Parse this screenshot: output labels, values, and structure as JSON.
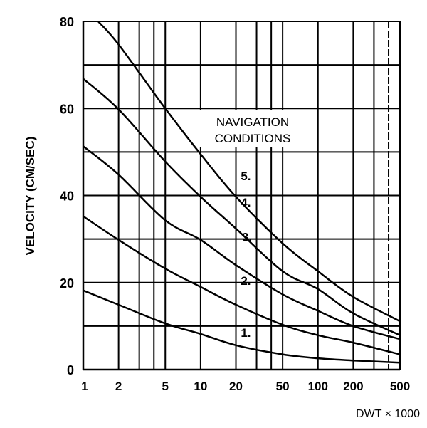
{
  "chart_data": {
    "type": "line",
    "title": "",
    "xlabel": "DWT × 1000",
    "ylabel": "VELOCITY (CM/SEC)",
    "x_scale": "log",
    "xlim": [
      1,
      500
    ],
    "ylim": [
      0,
      80
    ],
    "grid": true,
    "x_ticks": [
      1,
      2,
      5,
      10,
      20,
      50,
      100,
      200,
      500
    ],
    "x_tick_labels": [
      "1",
      "2",
      "5",
      "10",
      "20",
      "50",
      "100",
      "200",
      "500"
    ],
    "x_gridlines": [
      1,
      2,
      3,
      4,
      5,
      10,
      20,
      30,
      40,
      50,
      100,
      200,
      300,
      400,
      500
    ],
    "y_ticks": [
      0,
      20,
      40,
      60,
      80
    ],
    "y_tick_labels": [
      "0",
      "20",
      "40",
      "60",
      "80"
    ],
    "y_gridlines": [
      0,
      10,
      20,
      30,
      40,
      50,
      60,
      70,
      80
    ],
    "annotation": [
      "NAVIGATION",
      "CONDITIONS"
    ],
    "x": [
      1,
      2,
      5,
      10,
      20,
      50,
      100,
      200,
      500
    ],
    "series": [
      {
        "name": "1.",
        "values": [
          18.2,
          14.9,
          10.6,
          8.2,
          5.6,
          3.5,
          2.6,
          2.1,
          1.6
        ]
      },
      {
        "name": "2.",
        "values": [
          35.2,
          29.8,
          23.2,
          19.0,
          14.9,
          10.3,
          7.9,
          6.2,
          3.5
        ]
      },
      {
        "name": "3.",
        "values": [
          51.3,
          44.8,
          34.3,
          29.8,
          24.0,
          17.3,
          13.5,
          10.0,
          7.0
        ]
      },
      {
        "name": "4.",
        "values": [
          66.8,
          59.8,
          47.8,
          39.7,
          32.4,
          22.6,
          18.5,
          12.9,
          7.9
        ]
      },
      {
        "name": "5.",
        "values": [
          null,
          74.7,
          60.0,
          49.5,
          39.7,
          29.0,
          22.6,
          16.7,
          11.1
        ]
      }
    ],
    "series_start": {
      "5.": [
        1.34,
        80
      ]
    },
    "line_color": "#000000",
    "background": "#ffffff"
  }
}
